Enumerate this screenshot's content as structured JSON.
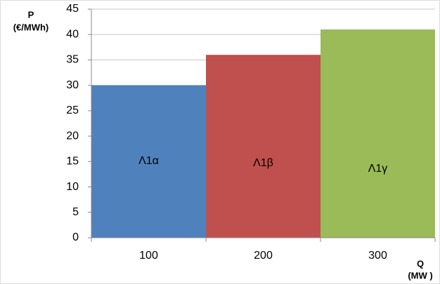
{
  "chart_data": {
    "type": "bar",
    "ylabel": "P",
    "ylabel_unit": "(€/MWh)",
    "xlabel": "Q",
    "xlabel_unit": "(MW )",
    "categories": [
      "100",
      "200",
      "300"
    ],
    "values": [
      30,
      36,
      41
    ],
    "bar_labels": [
      "Λ1α",
      "Λ1β",
      "Λ1γ"
    ],
    "colors": [
      "#4f81bd",
      "#c0504d",
      "#9bbb59"
    ],
    "ylim": [
      0,
      45
    ],
    "yticks": [
      0,
      5,
      10,
      15,
      20,
      25,
      30,
      35,
      40,
      45
    ],
    "grid": true
  }
}
